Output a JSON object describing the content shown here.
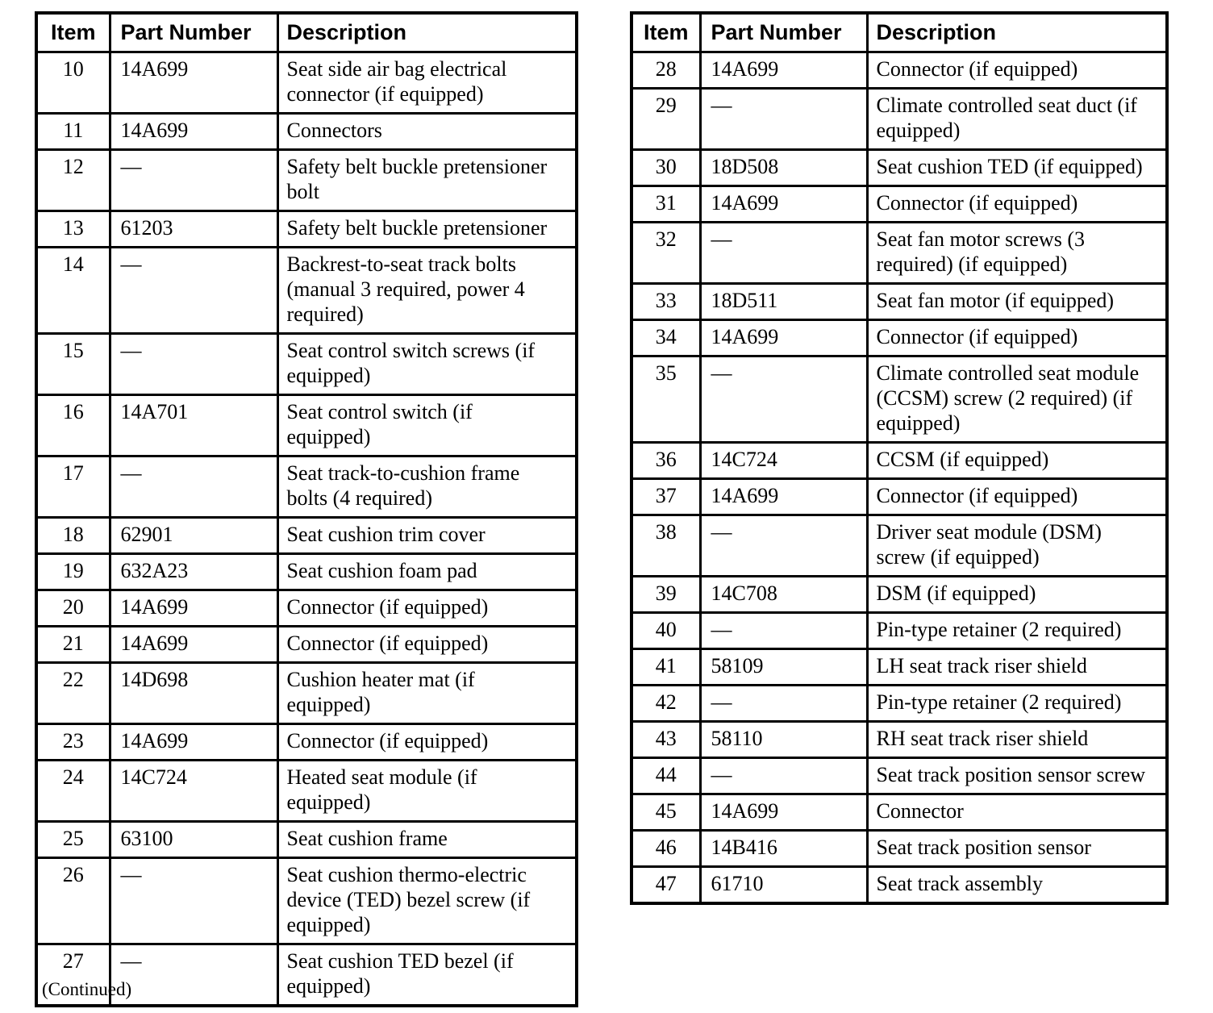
{
  "document": {
    "continued_label": "(Continued)"
  },
  "tables": [
    {
      "id": "left",
      "columns": [
        "Item",
        "Part Number",
        "Description"
      ],
      "rows": [
        {
          "item": "10",
          "part_number": "14A699",
          "description": "Seat side air bag electrical connector (if equipped)"
        },
        {
          "item": "11",
          "part_number": "14A699",
          "description": "Connectors"
        },
        {
          "item": "12",
          "part_number": "—",
          "description": "Safety belt buckle pretensioner bolt"
        },
        {
          "item": "13",
          "part_number": "61203",
          "description": "Safety belt buckle pretensioner"
        },
        {
          "item": "14",
          "part_number": "—",
          "description": "Backrest-to-seat track bolts (manual 3 required, power 4 required)"
        },
        {
          "item": "15",
          "part_number": "—",
          "description": "Seat control switch screws (if equipped)"
        },
        {
          "item": "16",
          "part_number": "14A701",
          "description": "Seat control switch (if equipped)"
        },
        {
          "item": "17",
          "part_number": "—",
          "description": "Seat track-to-cushion frame bolts (4 required)"
        },
        {
          "item": "18",
          "part_number": "62901",
          "description": "Seat cushion trim cover"
        },
        {
          "item": "19",
          "part_number": "632A23",
          "description": "Seat cushion foam pad"
        },
        {
          "item": "20",
          "part_number": "14A699",
          "description": "Connector (if equipped)"
        },
        {
          "item": "21",
          "part_number": "14A699",
          "description": "Connector (if equipped)"
        },
        {
          "item": "22",
          "part_number": "14D698",
          "description": "Cushion heater mat (if equipped)"
        },
        {
          "item": "23",
          "part_number": "14A699",
          "description": "Connector (if equipped)"
        },
        {
          "item": "24",
          "part_number": "14C724",
          "description": "Heated seat module (if equipped)"
        },
        {
          "item": "25",
          "part_number": "63100",
          "description": "Seat cushion frame"
        },
        {
          "item": "26",
          "part_number": "—",
          "description": "Seat cushion thermo-electric device (TED) bezel screw (if equipped)"
        },
        {
          "item": "27",
          "part_number": "—",
          "description": "Seat cushion TED bezel (if equipped)"
        }
      ]
    },
    {
      "id": "right",
      "columns": [
        "Item",
        "Part Number",
        "Description"
      ],
      "rows": [
        {
          "item": "28",
          "part_number": "14A699",
          "description": "Connector (if equipped)"
        },
        {
          "item": "29",
          "part_number": "—",
          "description": "Climate controlled seat duct (if equipped)"
        },
        {
          "item": "30",
          "part_number": "18D508",
          "description": "Seat cushion TED (if equipped)"
        },
        {
          "item": "31",
          "part_number": "14A699",
          "description": "Connector (if equipped)"
        },
        {
          "item": "32",
          "part_number": "—",
          "description": "Seat fan motor screws (3 required) (if equipped)"
        },
        {
          "item": "33",
          "part_number": "18D511",
          "description": "Seat fan motor (if equipped)"
        },
        {
          "item": "34",
          "part_number": "14A699",
          "description": "Connector (if equipped)"
        },
        {
          "item": "35",
          "part_number": "—",
          "description": "Climate controlled seat module (CCSM) screw (2 required) (if equipped)"
        },
        {
          "item": "36",
          "part_number": "14C724",
          "description": "CCSM (if equipped)"
        },
        {
          "item": "37",
          "part_number": "14A699",
          "description": "Connector (if equipped)"
        },
        {
          "item": "38",
          "part_number": "—",
          "description": "Driver seat module (DSM) screw (if equipped)"
        },
        {
          "item": "39",
          "part_number": "14C708",
          "description": "DSM (if equipped)"
        },
        {
          "item": "40",
          "part_number": "—",
          "description": "Pin-type retainer (2 required)"
        },
        {
          "item": "41",
          "part_number": "58109",
          "description": "LH seat track riser shield"
        },
        {
          "item": "42",
          "part_number": "—",
          "description": "Pin-type retainer (2 required)"
        },
        {
          "item": "43",
          "part_number": "58110",
          "description": "RH seat track riser shield"
        },
        {
          "item": "44",
          "part_number": "—",
          "description": "Seat track position sensor screw"
        },
        {
          "item": "45",
          "part_number": "14A699",
          "description": "Connector"
        },
        {
          "item": "46",
          "part_number": "14B416",
          "description": "Seat track position sensor"
        },
        {
          "item": "47",
          "part_number": "61710",
          "description": "Seat track assembly"
        }
      ]
    }
  ]
}
